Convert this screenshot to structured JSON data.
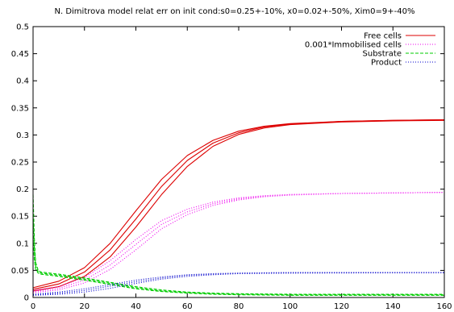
{
  "chart_data": {
    "type": "line",
    "title": "N. Dimitrova model relat err on init cond:s0=0.25+-10%, x0=0.02+-50%, Xim0=9+-40%",
    "xlabel": "",
    "ylabel": "",
    "xlim": [
      0,
      160
    ],
    "ylim": [
      0,
      0.5
    ],
    "x_ticks": [
      "0",
      "20",
      "40",
      "60",
      "80",
      "100",
      "120",
      "140",
      "160"
    ],
    "y_ticks": [
      "0",
      "0.05",
      "0.1",
      "0.15",
      "0.2",
      "0.25",
      "0.3",
      "0.35",
      "0.4",
      "0.45",
      "0.5"
    ],
    "grid": false,
    "legend_position": "top-right",
    "series": [
      {
        "name": "Free cells",
        "color": "#dd0000",
        "style": "solid",
        "curves": [
          [
            [
              0,
              0.018
            ],
            [
              10,
              0.03
            ],
            [
              20,
              0.055
            ],
            [
              30,
              0.1
            ],
            [
              40,
              0.16
            ],
            [
              50,
              0.218
            ],
            [
              60,
              0.262
            ],
            [
              70,
              0.29
            ],
            [
              80,
              0.307
            ],
            [
              90,
              0.316
            ],
            [
              100,
              0.321
            ],
            [
              120,
              0.325
            ],
            [
              140,
              0.327
            ],
            [
              160,
              0.328
            ]
          ],
          [
            [
              0,
              0.015
            ],
            [
              10,
              0.025
            ],
            [
              20,
              0.047
            ],
            [
              30,
              0.088
            ],
            [
              40,
              0.145
            ],
            [
              50,
              0.205
            ],
            [
              60,
              0.253
            ],
            [
              70,
              0.285
            ],
            [
              80,
              0.304
            ],
            [
              90,
              0.315
            ],
            [
              100,
              0.32
            ],
            [
              120,
              0.325
            ],
            [
              140,
              0.327
            ],
            [
              160,
              0.328
            ]
          ],
          [
            [
              0,
              0.012
            ],
            [
              10,
              0.02
            ],
            [
              20,
              0.039
            ],
            [
              30,
              0.075
            ],
            [
              40,
              0.13
            ],
            [
              50,
              0.19
            ],
            [
              60,
              0.242
            ],
            [
              70,
              0.279
            ],
            [
              80,
              0.301
            ],
            [
              90,
              0.313
            ],
            [
              100,
              0.319
            ],
            [
              120,
              0.324
            ],
            [
              140,
              0.326
            ],
            [
              160,
              0.327
            ]
          ]
        ]
      },
      {
        "name": "0.001*Immobilised cells",
        "color": "#ee00ee",
        "style": "dotted",
        "curves": [
          [
            [
              0,
              0.013
            ],
            [
              10,
              0.02
            ],
            [
              20,
              0.037
            ],
            [
              30,
              0.068
            ],
            [
              40,
              0.107
            ],
            [
              50,
              0.142
            ],
            [
              60,
              0.163
            ],
            [
              70,
              0.176
            ],
            [
              80,
              0.184
            ],
            [
              90,
              0.188
            ],
            [
              100,
              0.19
            ],
            [
              120,
              0.192
            ],
            [
              140,
              0.193
            ],
            [
              160,
              0.194
            ]
          ],
          [
            [
              0,
              0.011
            ],
            [
              10,
              0.017
            ],
            [
              20,
              0.032
            ],
            [
              30,
              0.06
            ],
            [
              40,
              0.098
            ],
            [
              50,
              0.135
            ],
            [
              60,
              0.158
            ],
            [
              70,
              0.173
            ],
            [
              80,
              0.182
            ],
            [
              90,
              0.187
            ],
            [
              100,
              0.19
            ],
            [
              120,
              0.192
            ],
            [
              140,
              0.193
            ],
            [
              160,
              0.194
            ]
          ],
          [
            [
              0,
              0.009
            ],
            [
              10,
              0.014
            ],
            [
              20,
              0.027
            ],
            [
              30,
              0.052
            ],
            [
              40,
              0.088
            ],
            [
              50,
              0.127
            ],
            [
              60,
              0.153
            ],
            [
              70,
              0.17
            ],
            [
              80,
              0.18
            ],
            [
              90,
              0.186
            ],
            [
              100,
              0.189
            ],
            [
              120,
              0.192
            ],
            [
              140,
              0.193
            ],
            [
              160,
              0.194
            ]
          ]
        ]
      },
      {
        "name": "Substrate",
        "color": "#00cc00",
        "style": "dashed",
        "curves": [
          [
            [
              0,
              0.19
            ],
            [
              0.5,
              0.11
            ],
            [
              1,
              0.065
            ],
            [
              2,
              0.05
            ],
            [
              3,
              0.047
            ],
            [
              10,
              0.043
            ],
            [
              20,
              0.036
            ],
            [
              30,
              0.028
            ],
            [
              40,
              0.02
            ],
            [
              50,
              0.014
            ],
            [
              60,
              0.01
            ],
            [
              70,
              0.008
            ],
            [
              80,
              0.007
            ],
            [
              100,
              0.006
            ],
            [
              160,
              0.006
            ]
          ],
          [
            [
              0,
              0.15
            ],
            [
              0.5,
              0.09
            ],
            [
              1,
              0.058
            ],
            [
              2,
              0.047
            ],
            [
              3,
              0.045
            ],
            [
              10,
              0.041
            ],
            [
              20,
              0.034
            ],
            [
              30,
              0.026
            ],
            [
              40,
              0.018
            ],
            [
              50,
              0.012
            ],
            [
              60,
              0.009
            ],
            [
              70,
              0.007
            ],
            [
              80,
              0.006
            ],
            [
              100,
              0.005
            ],
            [
              160,
              0.005
            ]
          ],
          [
            [
              0,
              0.11
            ],
            [
              0.5,
              0.07
            ],
            [
              1,
              0.052
            ],
            [
              2,
              0.045
            ],
            [
              3,
              0.043
            ],
            [
              10,
              0.039
            ],
            [
              20,
              0.032
            ],
            [
              30,
              0.024
            ],
            [
              40,
              0.016
            ],
            [
              50,
              0.011
            ],
            [
              60,
              0.008
            ],
            [
              70,
              0.006
            ],
            [
              80,
              0.005
            ],
            [
              100,
              0.004
            ],
            [
              160,
              0.004
            ]
          ]
        ]
      },
      {
        "name": "Product",
        "color": "#0000cc",
        "style": "dotted",
        "curves": [
          [
            [
              0,
              0.006
            ],
            [
              10,
              0.01
            ],
            [
              20,
              0.016
            ],
            [
              30,
              0.024
            ],
            [
              40,
              0.032
            ],
            [
              50,
              0.038
            ],
            [
              60,
              0.042
            ],
            [
              70,
              0.044
            ],
            [
              80,
              0.045
            ],
            [
              100,
              0.046
            ],
            [
              160,
              0.046
            ]
          ],
          [
            [
              0,
              0.005
            ],
            [
              10,
              0.008
            ],
            [
              20,
              0.013
            ],
            [
              30,
              0.021
            ],
            [
              40,
              0.029
            ],
            [
              50,
              0.036
            ],
            [
              60,
              0.041
            ],
            [
              70,
              0.043
            ],
            [
              80,
              0.045
            ],
            [
              100,
              0.046
            ],
            [
              160,
              0.046
            ]
          ],
          [
            [
              0,
              0.004
            ],
            [
              10,
              0.006
            ],
            [
              20,
              0.01
            ],
            [
              30,
              0.017
            ],
            [
              40,
              0.026
            ],
            [
              50,
              0.034
            ],
            [
              60,
              0.039
            ],
            [
              70,
              0.042
            ],
            [
              80,
              0.044
            ],
            [
              100,
              0.045
            ],
            [
              160,
              0.046
            ]
          ]
        ]
      }
    ]
  }
}
